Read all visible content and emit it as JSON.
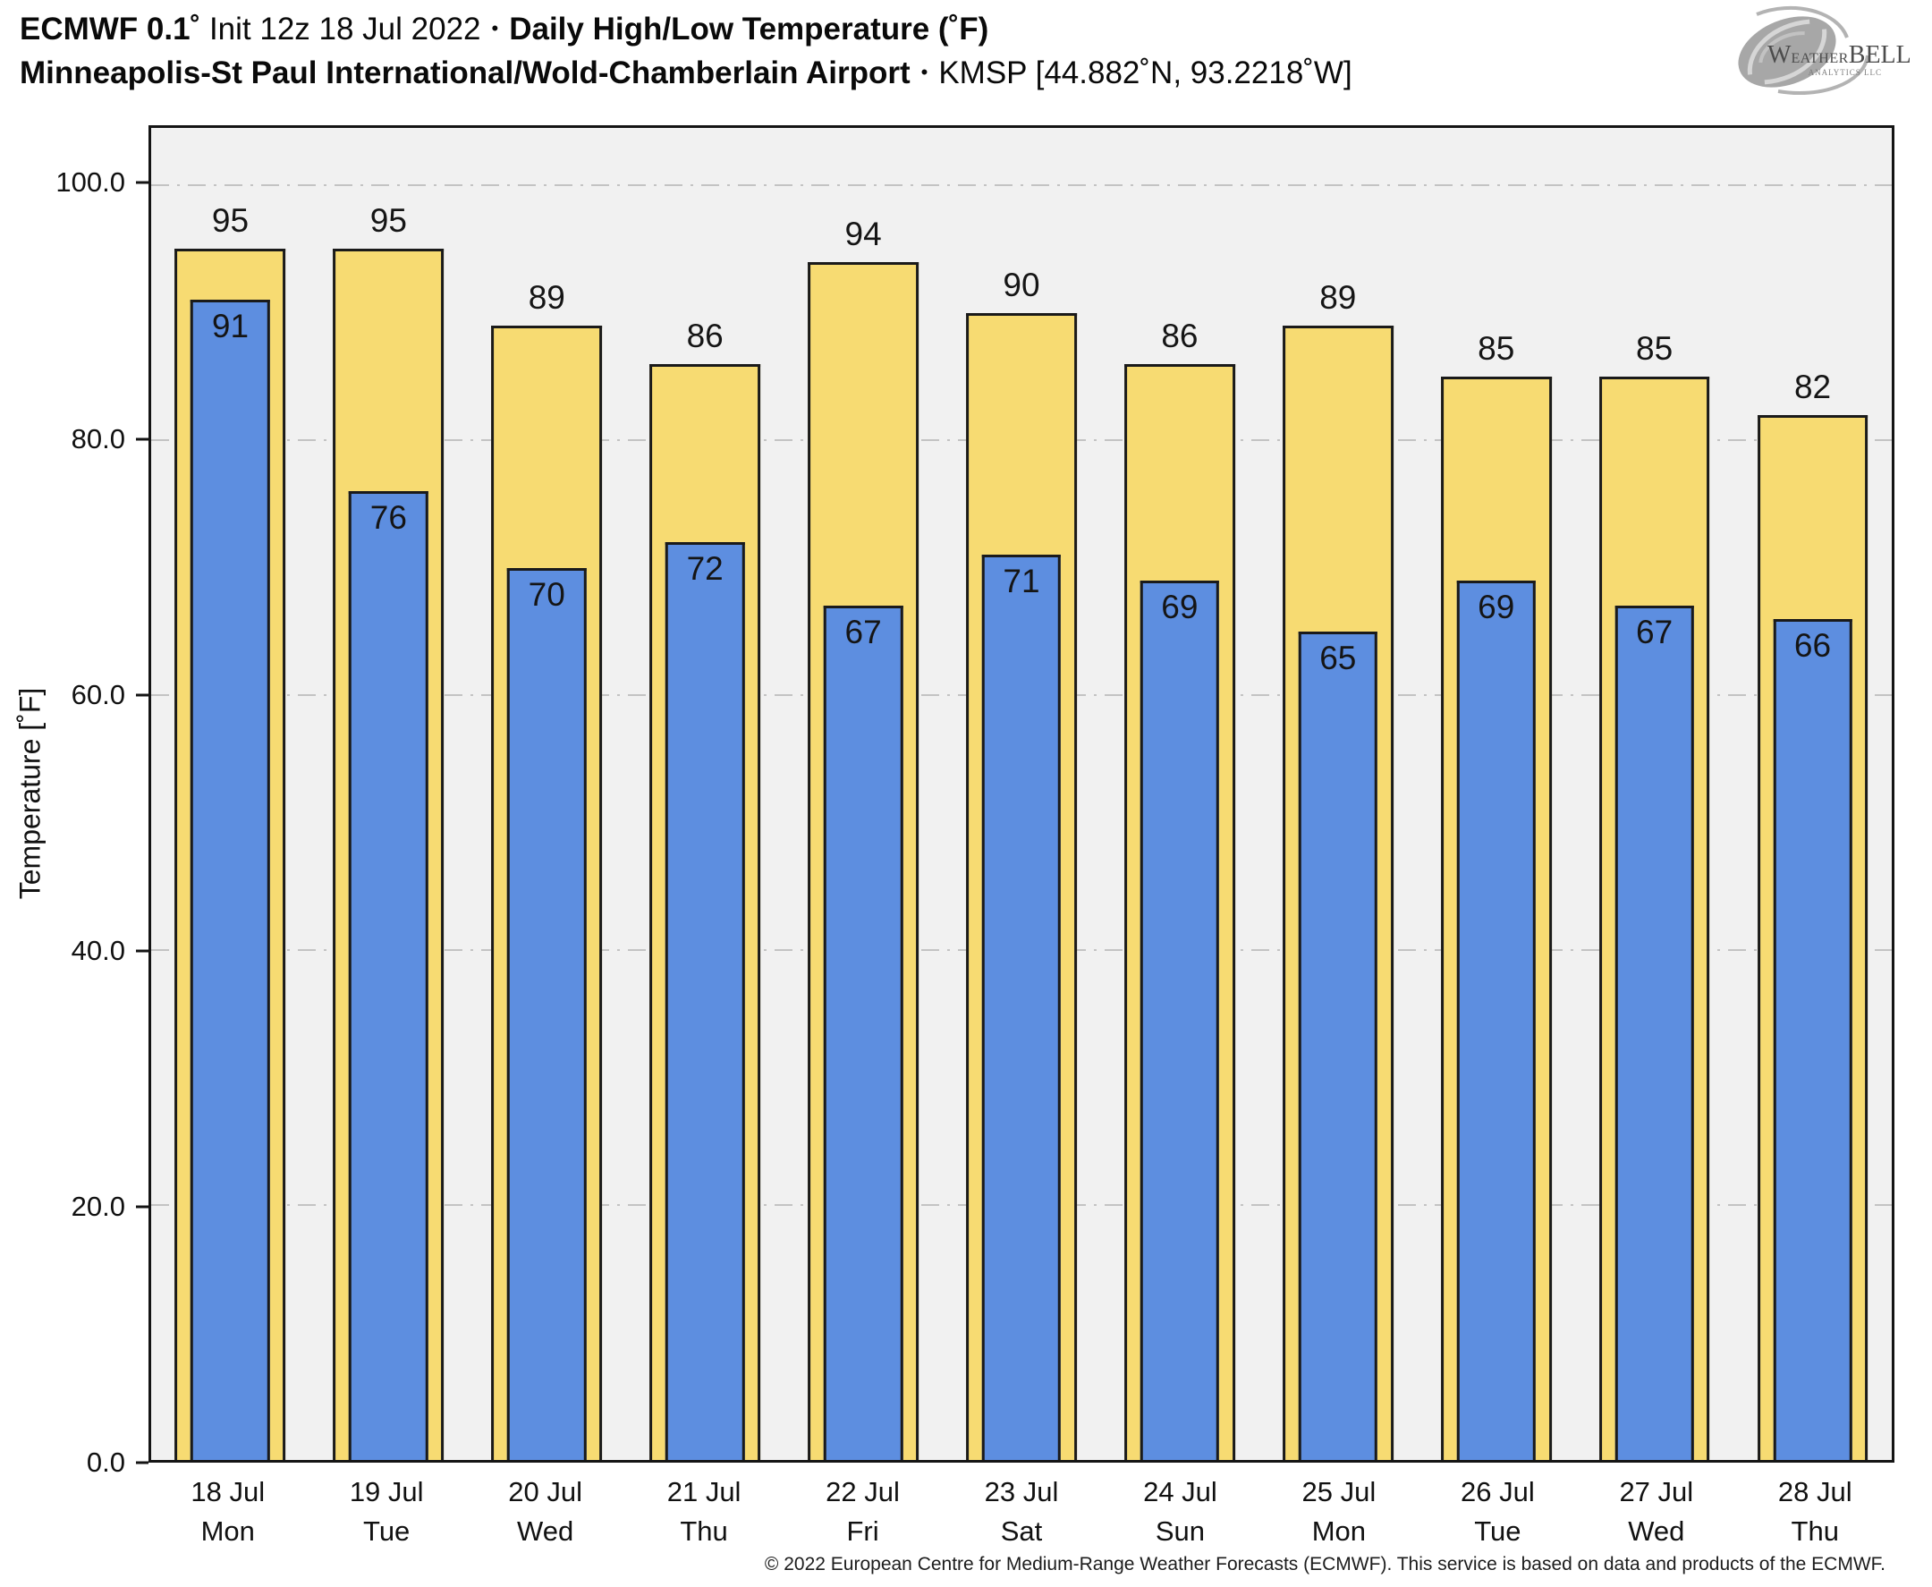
{
  "header": {
    "model": "ECMWF 0.1˚",
    "init": " Init 12z 18 Jul 2022",
    "sep1": "•",
    "product": "Daily High/Low Temperature (˚F)",
    "station": "Minneapolis-St Paul International/Wold-Chamberlain Airport",
    "sep2": "•",
    "station_id": "KMSP [44.882˚N, 93.2218˚W]"
  },
  "logo": {
    "brand_w": "W",
    "brand_eather": "EATHER",
    "brand_bell": "BELL",
    "tagline": "ANALYTICS LLC"
  },
  "chart_data": {
    "type": "bar",
    "title": "ECMWF 0.1˚ Init 12z 18 Jul 2022 • Daily High/Low Temperature (˚F)",
    "subtitle": "Minneapolis-St Paul International/Wold-Chamberlain Airport • KMSP [44.882˚N, 93.2218˚W]",
    "xlabel": "",
    "ylabel": "Temperature [˚F]",
    "ylim": [
      0,
      104.5
    ],
    "ytick_labels": [
      "0.0",
      "20.0",
      "40.0",
      "60.0",
      "80.0",
      "100.0"
    ],
    "grid": "horizontal dash-dot",
    "legend": "none",
    "categories": [
      {
        "date": "18 Jul",
        "day": "Mon"
      },
      {
        "date": "19 Jul",
        "day": "Tue"
      },
      {
        "date": "20 Jul",
        "day": "Wed"
      },
      {
        "date": "21 Jul",
        "day": "Thu"
      },
      {
        "date": "22 Jul",
        "day": "Fri"
      },
      {
        "date": "23 Jul",
        "day": "Sat"
      },
      {
        "date": "24 Jul",
        "day": "Sun"
      },
      {
        "date": "25 Jul",
        "day": "Mon"
      },
      {
        "date": "26 Jul",
        "day": "Tue"
      },
      {
        "date": "27 Jul",
        "day": "Wed"
      },
      {
        "date": "28 Jul",
        "day": "Thu"
      }
    ],
    "series": [
      {
        "name": "Daily High",
        "color": "#f7db72",
        "values": [
          95,
          95,
          89,
          86,
          94,
          90,
          86,
          89,
          85,
          85,
          82
        ]
      },
      {
        "name": "Daily Low",
        "color": "#5d8ee0",
        "values": [
          91,
          76,
          70,
          72,
          67,
          71,
          69,
          65,
          69,
          67,
          66
        ]
      }
    ]
  },
  "colors": {
    "bar_high": "#f7db72",
    "bar_low": "#5d8ee0",
    "bar_border": "#1a1a1a",
    "plot_background": "#f1f1f1",
    "gridline": "#c3c3c3",
    "text": "#0a0a0a"
  },
  "footer": {
    "text": "© 2022 European Centre for Medium-Range Weather Forecasts (ECMWF). This service is based on data and products of the ECMWF."
  }
}
